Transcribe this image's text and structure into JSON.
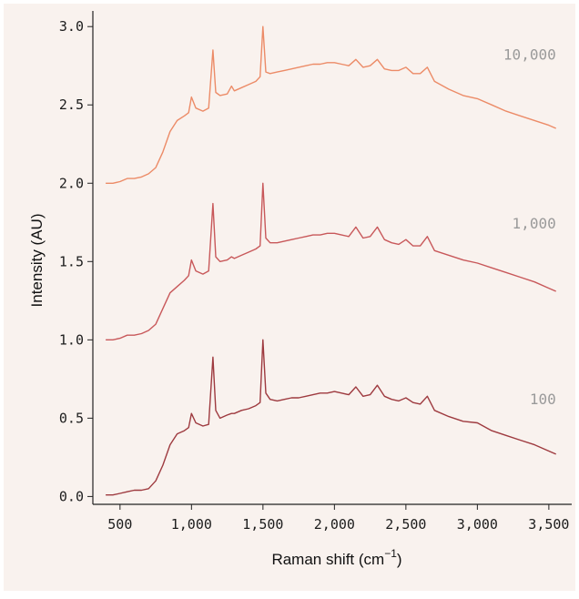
{
  "chart_data": {
    "type": "line",
    "xlabel": "Raman shift (cm",
    "xlabel_sup": "−1",
    "xlabel_close": ")",
    "ylabel": "Intensity (AU)",
    "xlim": [
      310,
      3660
    ],
    "ylim": [
      -0.05,
      3.1
    ],
    "x_ticks": [
      500,
      1000,
      1500,
      2000,
      2500,
      3000,
      3500
    ],
    "x_tick_labels": [
      "500",
      "1,000",
      "1,500",
      "2,000",
      "2,500",
      "3,000",
      "3,500"
    ],
    "y_ticks": [
      0.0,
      0.5,
      1.0,
      1.5,
      2.0,
      2.5,
      3.0
    ],
    "y_tick_labels": [
      "0.0",
      "0.5",
      "1.0",
      "1.5",
      "2.0",
      "2.5",
      "3.0"
    ],
    "grid": false,
    "background": "#f9f2ee",
    "series": [
      {
        "name": "100",
        "color": "#9e3a3f",
        "label_at": [
          3550,
          0.59
        ],
        "x": [
          400,
          450,
          500,
          550,
          600,
          650,
          700,
          750,
          800,
          850,
          900,
          950,
          980,
          1000,
          1030,
          1080,
          1120,
          1150,
          1170,
          1200,
          1250,
          1280,
          1300,
          1350,
          1400,
          1450,
          1480,
          1500,
          1520,
          1550,
          1600,
          1650,
          1700,
          1750,
          1800,
          1850,
          1900,
          1950,
          2000,
          2050,
          2100,
          2150,
          2200,
          2250,
          2300,
          2350,
          2400,
          2450,
          2500,
          2550,
          2600,
          2650,
          2700,
          2800,
          2900,
          3000,
          3100,
          3200,
          3300,
          3400,
          3500,
          3550
        ],
        "y": [
          0.01,
          0.01,
          0.02,
          0.03,
          0.04,
          0.04,
          0.05,
          0.1,
          0.2,
          0.33,
          0.4,
          0.42,
          0.44,
          0.53,
          0.47,
          0.45,
          0.46,
          0.89,
          0.55,
          0.5,
          0.52,
          0.53,
          0.53,
          0.55,
          0.56,
          0.58,
          0.6,
          1.0,
          0.66,
          0.62,
          0.61,
          0.62,
          0.63,
          0.63,
          0.64,
          0.65,
          0.66,
          0.66,
          0.67,
          0.66,
          0.65,
          0.7,
          0.64,
          0.65,
          0.71,
          0.64,
          0.62,
          0.61,
          0.63,
          0.6,
          0.59,
          0.64,
          0.55,
          0.51,
          0.48,
          0.47,
          0.42,
          0.39,
          0.36,
          0.33,
          0.29,
          0.27
        ]
      },
      {
        "name": "1,000",
        "color": "#c8585a",
        "label_at": [
          3550,
          1.71
        ],
        "x": [
          400,
          450,
          500,
          550,
          600,
          650,
          700,
          750,
          800,
          850,
          900,
          950,
          980,
          1000,
          1030,
          1080,
          1120,
          1150,
          1170,
          1200,
          1250,
          1280,
          1300,
          1350,
          1400,
          1450,
          1480,
          1500,
          1520,
          1550,
          1600,
          1650,
          1700,
          1750,
          1800,
          1850,
          1900,
          1950,
          2000,
          2050,
          2100,
          2150,
          2200,
          2250,
          2300,
          2350,
          2400,
          2450,
          2500,
          2550,
          2600,
          2650,
          2700,
          2800,
          2900,
          3000,
          3100,
          3200,
          3300,
          3400,
          3500,
          3550
        ],
        "y": [
          1.0,
          1.0,
          1.01,
          1.03,
          1.03,
          1.04,
          1.06,
          1.1,
          1.2,
          1.3,
          1.34,
          1.38,
          1.41,
          1.51,
          1.44,
          1.42,
          1.44,
          1.87,
          1.53,
          1.5,
          1.51,
          1.53,
          1.52,
          1.54,
          1.56,
          1.58,
          1.6,
          2.0,
          1.65,
          1.62,
          1.62,
          1.63,
          1.64,
          1.65,
          1.66,
          1.67,
          1.67,
          1.68,
          1.68,
          1.67,
          1.66,
          1.72,
          1.65,
          1.66,
          1.72,
          1.64,
          1.62,
          1.61,
          1.64,
          1.6,
          1.6,
          1.66,
          1.57,
          1.54,
          1.51,
          1.49,
          1.46,
          1.43,
          1.4,
          1.37,
          1.33,
          1.31
        ]
      },
      {
        "name": "10,000",
        "color": "#ec8b67",
        "label_at": [
          3550,
          2.79
        ],
        "x": [
          400,
          450,
          500,
          550,
          600,
          650,
          700,
          750,
          800,
          850,
          900,
          950,
          980,
          1000,
          1030,
          1080,
          1120,
          1150,
          1170,
          1200,
          1250,
          1280,
          1300,
          1350,
          1400,
          1450,
          1480,
          1500,
          1520,
          1550,
          1600,
          1650,
          1700,
          1750,
          1800,
          1850,
          1900,
          1950,
          2000,
          2050,
          2100,
          2150,
          2200,
          2250,
          2300,
          2350,
          2400,
          2450,
          2500,
          2550,
          2600,
          2650,
          2700,
          2800,
          2900,
          3000,
          3100,
          3200,
          3300,
          3400,
          3500,
          3550
        ],
        "y": [
          2.0,
          2.0,
          2.01,
          2.03,
          2.03,
          2.04,
          2.06,
          2.1,
          2.2,
          2.33,
          2.4,
          2.43,
          2.45,
          2.55,
          2.48,
          2.46,
          2.48,
          2.85,
          2.58,
          2.56,
          2.57,
          2.62,
          2.59,
          2.61,
          2.63,
          2.65,
          2.68,
          3.0,
          2.71,
          2.7,
          2.71,
          2.72,
          2.73,
          2.74,
          2.75,
          2.76,
          2.76,
          2.77,
          2.77,
          2.76,
          2.75,
          2.79,
          2.74,
          2.75,
          2.79,
          2.73,
          2.72,
          2.72,
          2.74,
          2.7,
          2.7,
          2.74,
          2.65,
          2.6,
          2.56,
          2.54,
          2.5,
          2.46,
          2.43,
          2.4,
          2.37,
          2.35
        ]
      }
    ]
  }
}
